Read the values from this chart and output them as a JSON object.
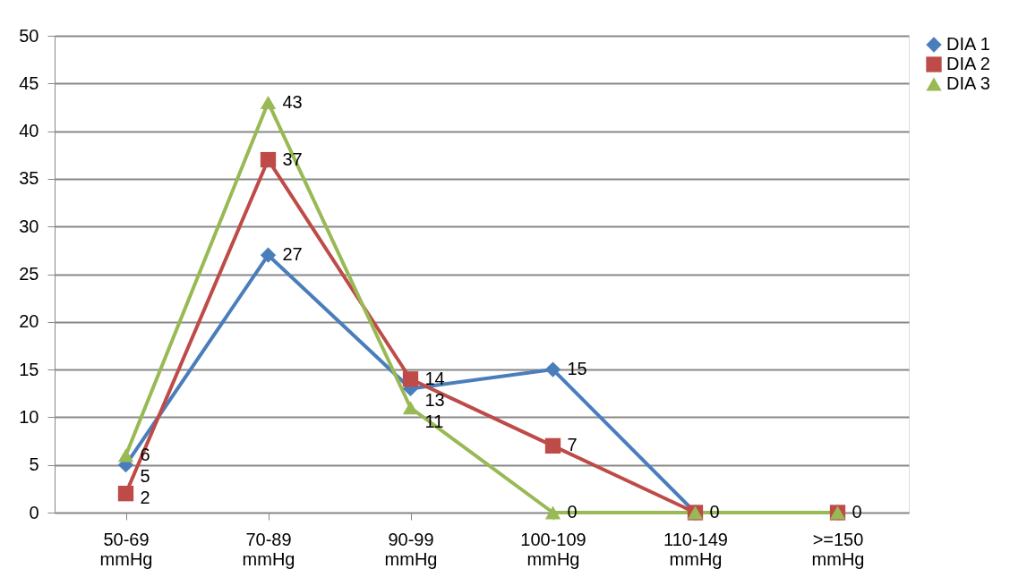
{
  "chart_data": {
    "type": "line",
    "categories": [
      "50-69 mmHg",
      "70-89 mmHg",
      "90-99 mmHg",
      "100-109 mmHg",
      "110-149 mmHg",
      ">=150 mmHg"
    ],
    "series": [
      {
        "name": "DIA 1",
        "color": "#4a7ebb",
        "marker": "diamond",
        "values": [
          5,
          27,
          13,
          15,
          0,
          0
        ],
        "value_labels": [
          "5",
          "27",
          "13",
          "15",
          "0",
          "0"
        ]
      },
      {
        "name": "DIA 2",
        "color": "#be4b48",
        "marker": "square",
        "values": [
          2,
          37,
          14,
          7,
          0,
          0
        ],
        "value_labels": [
          "2",
          "37",
          "14",
          "7",
          null,
          null
        ]
      },
      {
        "name": "DIA 3",
        "color": "#98b954",
        "marker": "triangle",
        "values": [
          6,
          43,
          11,
          0,
          0,
          0
        ],
        "value_labels": [
          "6",
          "43",
          "11",
          "0",
          null,
          null
        ]
      }
    ],
    "ylim": [
      0,
      50
    ],
    "yticks": [
      0,
      5,
      10,
      15,
      20,
      25,
      30,
      35,
      40,
      45,
      50
    ],
    "grid": "y",
    "legend": "right",
    "line_style": "solid"
  }
}
